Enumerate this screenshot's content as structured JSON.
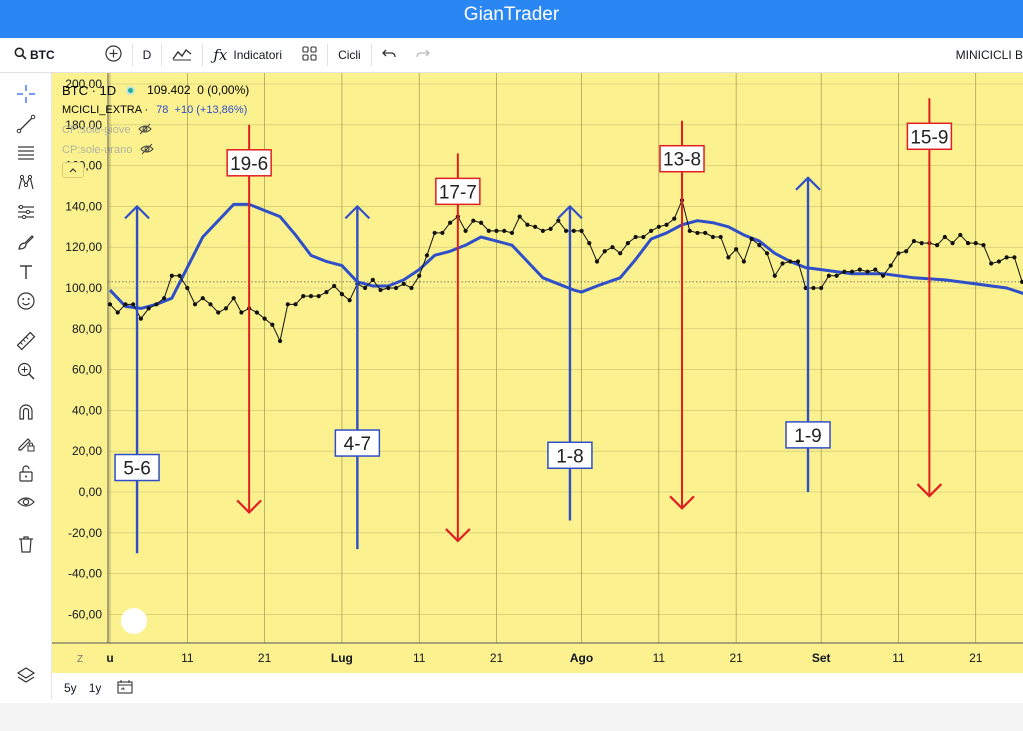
{
  "app": {
    "title": "GianTrader"
  },
  "toolbar": {
    "symbol": "BTC",
    "interval": "D",
    "indicators_label": "Indicatori",
    "cycles_label": "Cicli",
    "right_label": "MINICICLI B"
  },
  "legend": {
    "symbol_line": "BTC · 1D",
    "price_line": "109.402  0 (0,00%)",
    "indicator_name": "MCICLI_EXTRA ·",
    "indicator_value": "78  +10 (+13,86%)",
    "overlay_1": "CP:sole-giove",
    "overlay_2": "CP:sole-urano"
  },
  "bottom": {
    "range_5y": "5y",
    "range_1y": "1y"
  },
  "colors": {
    "chart_bg": "#fbf18f",
    "blue": "#2f4fc9",
    "red": "#e02020",
    "price": "#111111"
  },
  "icons": [
    "crosshair-icon",
    "trendline-icon",
    "fib-lines-icon",
    "pattern-icon",
    "gann-icon",
    "brush-icon",
    "text-icon",
    "emoji-icon",
    "ruler-icon",
    "zoom-icon",
    "magnet-icon",
    "lock-pencil-icon",
    "lock-icon",
    "eye-icon",
    "trash-icon",
    "layers-icon",
    "calendar-range-icon"
  ],
  "chart_data": {
    "type": "line",
    "y_axis": {
      "ticks": [
        "200,00",
        "180,00",
        "160,00",
        "140,00",
        "120,00",
        "100,00",
        "80,00",
        "60,00",
        "40,00",
        "20,00",
        "0,00",
        "-20,00",
        "-40,00",
        "-60,00"
      ],
      "range": [
        -70,
        205
      ]
    },
    "x_axis": {
      "range_days": [
        0,
        118
      ],
      "labels": [
        {
          "day": 0,
          "text": "u",
          "bold": true
        },
        {
          "day": 10,
          "text": "11",
          "bold": false
        },
        {
          "day": 20,
          "text": "21",
          "bold": false
        },
        {
          "day": 30,
          "text": "Lug",
          "bold": true
        },
        {
          "day": 40,
          "text": "11",
          "bold": false
        },
        {
          "day": 50,
          "text": "21",
          "bold": false
        },
        {
          "day": 61,
          "text": "Ago",
          "bold": true
        },
        {
          "day": 71,
          "text": "11",
          "bold": false
        },
        {
          "day": 81,
          "text": "21",
          "bold": false
        },
        {
          "day": 92,
          "text": "Set",
          "bold": true
        },
        {
          "day": 102,
          "text": "11",
          "bold": false
        },
        {
          "day": 112,
          "text": "21",
          "bold": false
        }
      ],
      "z_button": "Z"
    },
    "reference_line": 103,
    "series": [
      {
        "type": "line_markers",
        "values": [
          [
            0,
            92
          ],
          [
            1,
            88
          ],
          [
            2,
            92
          ],
          [
            3,
            92
          ],
          [
            4,
            85
          ],
          [
            5,
            90
          ],
          [
            6,
            92
          ],
          [
            7,
            95
          ],
          [
            8,
            106
          ],
          [
            9,
            106
          ],
          [
            10,
            100
          ],
          [
            11,
            92
          ],
          [
            12,
            95
          ],
          [
            13,
            92
          ],
          [
            14,
            88
          ],
          [
            15,
            90
          ],
          [
            16,
            95
          ],
          [
            17,
            88
          ],
          [
            18,
            90
          ],
          [
            19,
            88
          ],
          [
            20,
            85
          ],
          [
            21,
            82
          ],
          [
            22,
            74
          ],
          [
            23,
            92
          ],
          [
            24,
            92
          ],
          [
            25,
            96
          ],
          [
            26,
            96
          ],
          [
            27,
            96
          ],
          [
            28,
            98
          ],
          [
            29,
            101
          ],
          [
            30,
            97
          ],
          [
            31,
            94
          ],
          [
            32,
            102
          ],
          [
            33,
            100
          ],
          [
            34,
            104
          ],
          [
            35,
            99
          ],
          [
            36,
            100
          ],
          [
            37,
            100
          ],
          [
            38,
            102
          ],
          [
            39,
            100
          ],
          [
            40,
            106
          ],
          [
            41,
            116
          ],
          [
            42,
            127
          ],
          [
            43,
            127
          ],
          [
            44,
            132
          ],
          [
            45,
            135
          ],
          [
            46,
            128
          ],
          [
            47,
            133
          ],
          [
            48,
            132
          ],
          [
            49,
            128
          ],
          [
            50,
            128
          ],
          [
            51,
            128
          ],
          [
            52,
            127
          ],
          [
            53,
            135
          ],
          [
            54,
            131
          ],
          [
            55,
            130
          ],
          [
            56,
            128
          ],
          [
            57,
            129
          ],
          [
            58,
            133
          ],
          [
            59,
            128
          ],
          [
            60,
            128
          ],
          [
            61,
            128
          ],
          [
            62,
            122
          ],
          [
            63,
            113
          ],
          [
            64,
            118
          ],
          [
            65,
            120
          ],
          [
            66,
            117
          ],
          [
            67,
            122
          ],
          [
            68,
            125
          ],
          [
            69,
            125
          ],
          [
            70,
            128
          ],
          [
            71,
            130
          ],
          [
            72,
            131
          ],
          [
            73,
            134
          ],
          [
            74,
            143
          ],
          [
            75,
            128
          ],
          [
            76,
            127
          ],
          [
            77,
            127
          ],
          [
            78,
            125
          ],
          [
            79,
            125
          ],
          [
            80,
            115
          ],
          [
            81,
            119
          ],
          [
            82,
            113
          ],
          [
            83,
            124
          ],
          [
            84,
            121
          ],
          [
            85,
            117
          ],
          [
            86,
            106
          ],
          [
            87,
            112
          ],
          [
            88,
            113
          ],
          [
            89,
            113
          ],
          [
            90,
            100
          ],
          [
            91,
            100
          ],
          [
            92,
            100
          ],
          [
            93,
            106
          ],
          [
            94,
            106
          ],
          [
            95,
            108
          ],
          [
            96,
            108
          ],
          [
            97,
            109
          ],
          [
            98,
            108
          ],
          [
            99,
            109
          ],
          [
            100,
            106
          ],
          [
            101,
            111
          ],
          [
            102,
            117
          ],
          [
            103,
            118
          ],
          [
            104,
            123
          ],
          [
            105,
            122
          ],
          [
            106,
            122
          ],
          [
            107,
            121
          ],
          [
            108,
            125
          ],
          [
            109,
            122
          ],
          [
            110,
            126
          ],
          [
            111,
            122
          ],
          [
            112,
            122
          ],
          [
            113,
            121
          ],
          [
            114,
            112
          ],
          [
            115,
            113
          ],
          [
            116,
            115
          ],
          [
            117,
            115
          ],
          [
            118,
            103
          ],
          [
            119,
            103
          ],
          [
            120,
            103
          ]
        ]
      },
      {
        "type": "line",
        "values": [
          [
            0,
            99
          ],
          [
            2,
            91
          ],
          [
            4,
            90
          ],
          [
            6,
            92
          ],
          [
            8,
            95
          ],
          [
            10,
            110
          ],
          [
            12,
            125
          ],
          [
            14,
            133
          ],
          [
            16,
            141
          ],
          [
            18,
            141
          ],
          [
            20,
            138
          ],
          [
            22,
            135
          ],
          [
            24,
            126
          ],
          [
            26,
            116
          ],
          [
            28,
            113
          ],
          [
            30,
            111
          ],
          [
            32,
            103
          ],
          [
            34,
            101
          ],
          [
            36,
            101
          ],
          [
            38,
            104
          ],
          [
            40,
            109
          ],
          [
            42,
            116
          ],
          [
            44,
            118
          ],
          [
            46,
            121
          ],
          [
            48,
            125
          ],
          [
            50,
            123
          ],
          [
            52,
            121
          ],
          [
            54,
            113
          ],
          [
            56,
            105
          ],
          [
            58,
            102
          ],
          [
            60,
            99
          ],
          [
            61,
            98
          ],
          [
            63,
            101
          ],
          [
            66,
            105
          ],
          [
            68,
            114
          ],
          [
            70,
            124
          ],
          [
            72,
            127
          ],
          [
            74,
            131
          ],
          [
            76,
            133
          ],
          [
            78,
            132
          ],
          [
            80,
            130
          ],
          [
            82,
            126
          ],
          [
            84,
            123
          ],
          [
            86,
            117
          ],
          [
            88,
            113
          ],
          [
            90,
            110
          ],
          [
            92,
            109
          ],
          [
            96,
            107
          ],
          [
            100,
            107
          ],
          [
            104,
            105
          ],
          [
            108,
            104
          ],
          [
            112,
            102
          ],
          [
            116,
            100
          ],
          [
            120,
            95
          ],
          [
            122,
            91
          ]
        ]
      }
    ],
    "cycle_markers": [
      {
        "label": "5-6",
        "color": "blue",
        "day": 3.5,
        "from": -30,
        "to": 140
      },
      {
        "label": "19-6",
        "color": "red",
        "day": 18,
        "from": 180,
        "to": -10
      },
      {
        "label": "4-7",
        "color": "blue",
        "day": 32,
        "from": -28,
        "to": 140
      },
      {
        "label": "17-7",
        "color": "red",
        "day": 45,
        "from": 166,
        "to": -24
      },
      {
        "label": "1-8",
        "color": "blue",
        "day": 59.5,
        "from": -14,
        "to": 140
      },
      {
        "label": "13-8",
        "color": "red",
        "day": 74,
        "from": 182,
        "to": -8
      },
      {
        "label": "1-9",
        "color": "blue",
        "day": 90.3,
        "from": 0,
        "to": 154
      },
      {
        "label": "15-9",
        "color": "red",
        "day": 106,
        "from": 193,
        "to": -2
      }
    ]
  }
}
